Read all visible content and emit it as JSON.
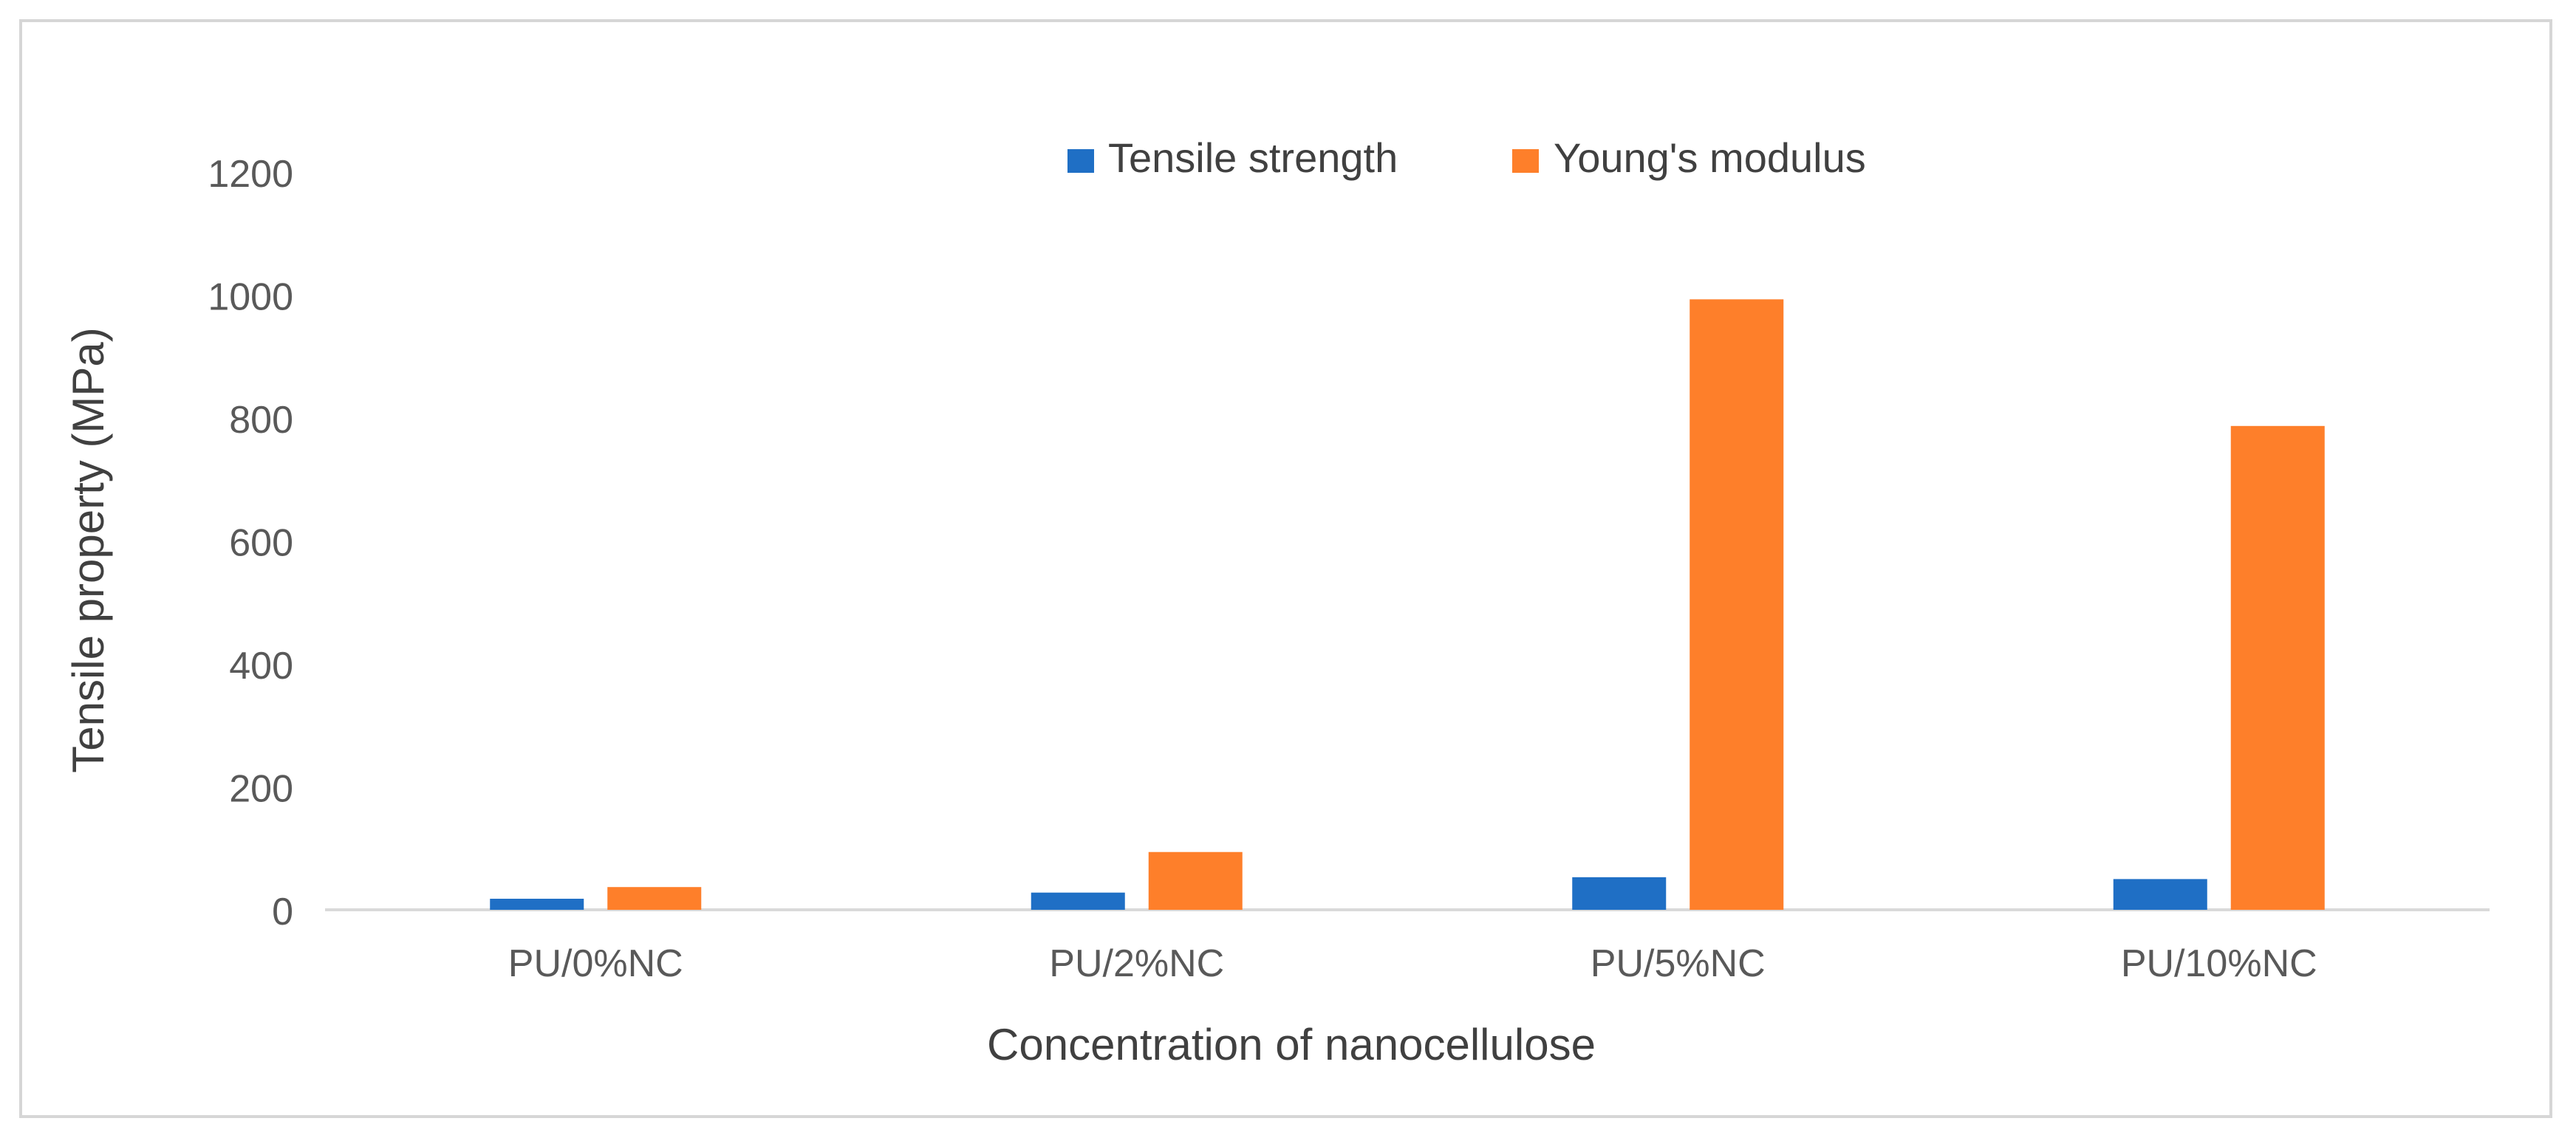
{
  "chart_data": {
    "type": "bar",
    "title": "",
    "xlabel": "Concentration of nanocellulose",
    "ylabel": "Tensile property (MPa)",
    "categories": [
      "PU/0%NC",
      "PU/2%NC",
      "PU/5%NC",
      "PU/10%NC"
    ],
    "series": [
      {
        "name": "Tensile strength",
        "values": [
          18,
          28,
          53,
          50
        ],
        "color": "#1f6fc5"
      },
      {
        "name": "Young's modulus",
        "values": [
          37,
          94,
          993,
          787
        ],
        "color": "#fe7f2a"
      }
    ],
    "ylim": [
      0,
      1200
    ],
    "yticks": [
      "0",
      "200",
      "400",
      "600",
      "800",
      "1000",
      "1200"
    ],
    "grid": false,
    "legend_position": "top-center"
  }
}
